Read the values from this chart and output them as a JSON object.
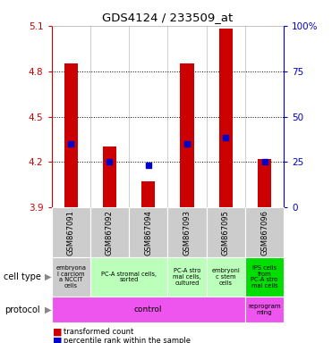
{
  "title": "GDS4124 / 233509_at",
  "samples": [
    "GSM867091",
    "GSM867092",
    "GSM867094",
    "GSM867093",
    "GSM867095",
    "GSM867096"
  ],
  "red_values": [
    4.85,
    4.3,
    4.07,
    4.85,
    5.08,
    4.22
  ],
  "blue_values": [
    4.32,
    4.2,
    4.18,
    4.32,
    4.36,
    4.2
  ],
  "ylim_left": [
    3.9,
    5.1
  ],
  "ylim_right": [
    0,
    100
  ],
  "yticks_left": [
    3.9,
    4.2,
    4.5,
    4.8,
    5.1
  ],
  "yticks_right": [
    0,
    25,
    50,
    75,
    100
  ],
  "ytick_right_labels": [
    "0",
    "25",
    "50",
    "75",
    "100%"
  ],
  "bar_bottom": 3.9,
  "bar_color": "#cc0000",
  "blue_marker_color": "#0000cc",
  "left_axis_color": "#cc0000",
  "right_axis_color": "#0000cc",
  "cell_groups": [
    {
      "span": [
        0,
        0
      ],
      "color": "#cccccc",
      "text": "embryona\nl carciom\na NCCIT\ncells"
    },
    {
      "span": [
        1,
        2
      ],
      "color": "#bbffbb",
      "text": "PC-A stromal cells,\nsorted"
    },
    {
      "span": [
        3,
        3
      ],
      "color": "#bbffbb",
      "text": "PC-A stro\nmal cells,\ncultured"
    },
    {
      "span": [
        4,
        4
      ],
      "color": "#bbffbb",
      "text": "embryoni\nc stem\ncells"
    },
    {
      "span": [
        5,
        5
      ],
      "color": "#00dd00",
      "text": "IPS cells\nfrom\nPC-A stro\nmal cells"
    }
  ],
  "protocol_groups": [
    {
      "span": [
        0,
        4
      ],
      "color": "#ee55ee",
      "text": "control"
    },
    {
      "span": [
        5,
        5
      ],
      "color": "#ee55ee",
      "text": "reprogram\nming"
    }
  ]
}
